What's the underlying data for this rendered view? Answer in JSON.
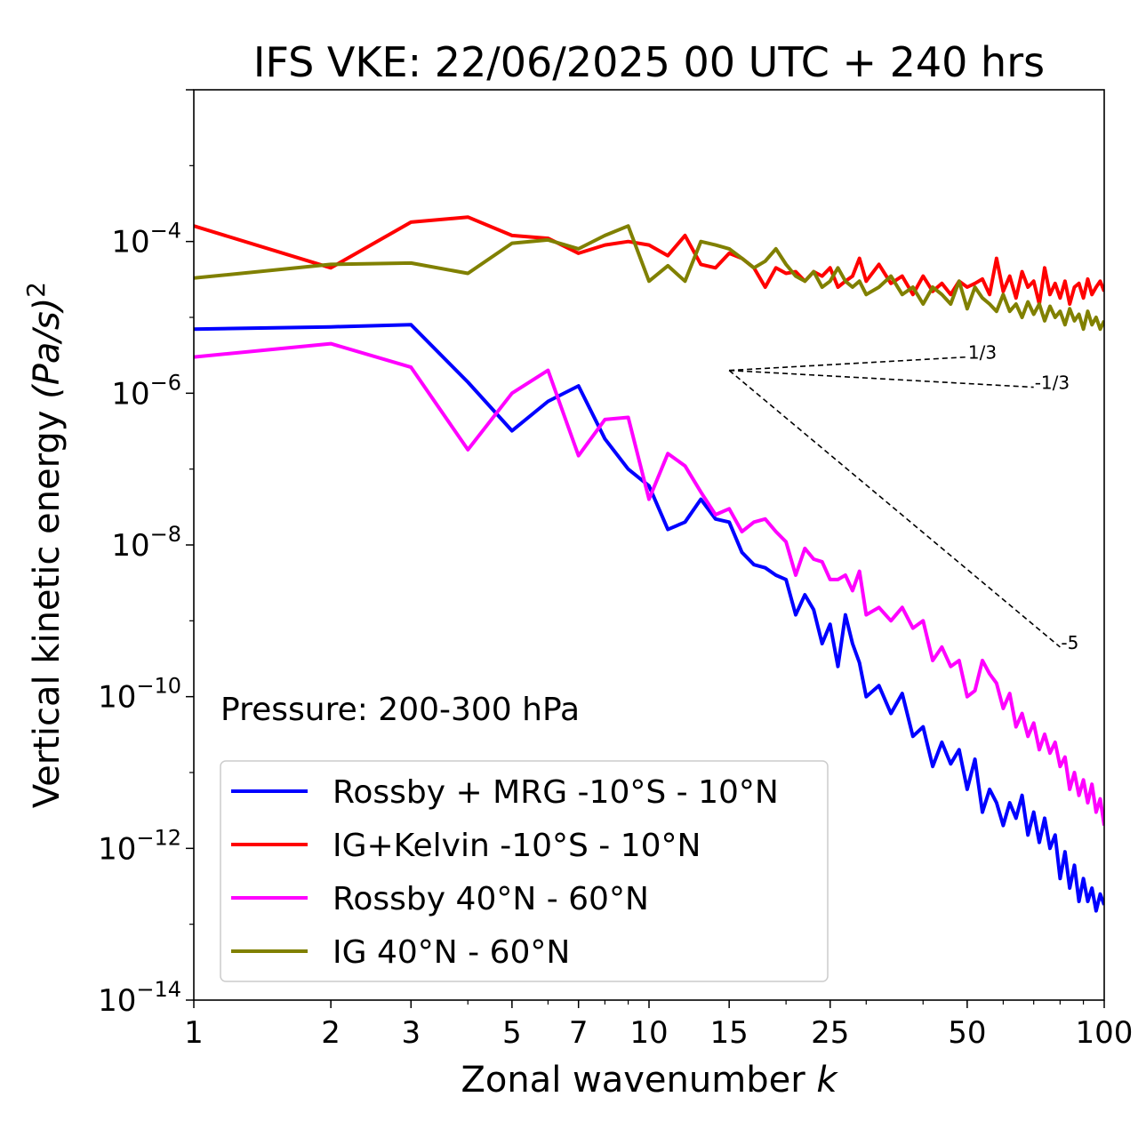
{
  "chart_data": {
    "type": "line",
    "title": "IFS VKE: 22/06/2025 00 UTC + 240 hrs",
    "xlabel": "Zonal wavenumber ",
    "xlabel_italic": "k",
    "ylabel": "Vertical kinetic energy ",
    "ylabel_unit": "(Pa/s)",
    "ylabel_exp": "2",
    "xscale": "log",
    "yscale": "log",
    "xlim": [
      1,
      100
    ],
    "ylim": [
      1e-14,
      0.01
    ],
    "x_ticks": [
      {
        "value": 1,
        "label": "1"
      },
      {
        "value": 2,
        "label": "2"
      },
      {
        "value": 3,
        "label": "3"
      },
      {
        "value": 5,
        "label": "5"
      },
      {
        "value": 7,
        "label": "7"
      },
      {
        "value": 10,
        "label": "10"
      },
      {
        "value": 15,
        "label": "15"
      },
      {
        "value": 25,
        "label": "25"
      },
      {
        "value": 50,
        "label": "50"
      },
      {
        "value": 100,
        "label": "100"
      }
    ],
    "y_ticks": [
      {
        "exp": -4,
        "base": "10",
        "sup": "−4"
      },
      {
        "exp": -6,
        "base": "10",
        "sup": "−6"
      },
      {
        "exp": -8,
        "base": "10",
        "sup": "−8"
      },
      {
        "exp": -10,
        "base": "10",
        "sup": "−10"
      },
      {
        "exp": -12,
        "base": "10",
        "sup": "−12"
      },
      {
        "exp": -14,
        "base": "10",
        "sup": "−14"
      }
    ],
    "annotation": "Pressure: 200-300 hPa",
    "legend_position": "lower-left",
    "reference_lines": [
      {
        "label": "1/3",
        "x": [
          15,
          50
        ],
        "y": [
          2e-06,
          3e-06
        ]
      },
      {
        "label": "-1/3",
        "x": [
          15,
          70
        ],
        "y": [
          2e-06,
          1.2e-06
        ]
      },
      {
        "label": "-5",
        "x": [
          15,
          80
        ],
        "y": [
          2e-06,
          4.5e-10
        ]
      }
    ],
    "series": [
      {
        "name": "Rossby + MRG -10°S - 10°N",
        "color": "#0000ff",
        "x": [
          1,
          2,
          3,
          4,
          5,
          6,
          7,
          8,
          9,
          10,
          11,
          12,
          13,
          14,
          15,
          16,
          17,
          18,
          19,
          20,
          21,
          22,
          23,
          24,
          25,
          26,
          27,
          28,
          29,
          30,
          32,
          34,
          36,
          38,
          40,
          42,
          44,
          46,
          48,
          50,
          52,
          54,
          56,
          58,
          60,
          62,
          64,
          66,
          68,
          70,
          72,
          74,
          76,
          78,
          80,
          82,
          84,
          86,
          88,
          90,
          92,
          94,
          96,
          98,
          100
        ],
        "y": [
          7e-06,
          7.5e-06,
          8e-06,
          1.4e-06,
          3.2e-07,
          7.8e-07,
          1.25e-06,
          2.5e-07,
          1e-07,
          6e-08,
          1.6e-08,
          2e-08,
          4e-08,
          2.2e-08,
          2e-08,
          8e-09,
          5.5e-09,
          5e-09,
          4e-09,
          3.5e-09,
          1.2e-09,
          2.2e-09,
          1.4e-09,
          5e-10,
          9e-10,
          2.5e-10,
          1.2e-09,
          5e-10,
          2.8e-10,
          1e-10,
          1.4e-10,
          6e-11,
          1.1e-10,
          3e-11,
          4e-11,
          1.2e-11,
          2.5e-11,
          1.3e-11,
          2e-11,
          6e-12,
          1.5e-11,
          3e-12,
          6e-12,
          4e-12,
          2e-12,
          4e-12,
          2.5e-12,
          5e-12,
          1.5e-12,
          3e-12,
          1.2e-12,
          2.5e-12,
          1e-12,
          1.5e-12,
          4e-13,
          9e-13,
          3e-13,
          6e-13,
          2e-13,
          4e-13,
          2e-13,
          3e-13,
          1.5e-13,
          2.5e-13,
          1.8e-13
        ]
      },
      {
        "name": "IG+Kelvin -10°S - 10°N",
        "color": "#ff0000",
        "x": [
          1,
          2,
          3,
          4,
          5,
          6,
          7,
          8,
          9,
          10,
          11,
          12,
          13,
          14,
          15,
          16,
          17,
          18,
          19,
          20,
          21,
          22,
          23,
          24,
          25,
          26,
          27,
          28,
          29,
          30,
          32,
          34,
          36,
          38,
          40,
          42,
          44,
          46,
          48,
          50,
          52,
          54,
          56,
          58,
          60,
          62,
          64,
          66,
          68,
          70,
          72,
          74,
          76,
          78,
          80,
          82,
          84,
          86,
          88,
          90,
          92,
          94,
          96,
          98,
          100
        ],
        "y": [
          0.00016,
          4.5e-05,
          0.00018,
          0.00021,
          0.00012,
          0.00011,
          7e-05,
          9e-05,
          0.0001,
          9e-05,
          6.5e-05,
          0.00012,
          5e-05,
          4.5e-05,
          7e-05,
          6e-05,
          4.5e-05,
          2.5e-05,
          4.5e-05,
          3.8e-05,
          4e-05,
          3e-05,
          4e-05,
          3.5e-05,
          4.5e-05,
          2.5e-05,
          3e-05,
          3.5e-05,
          6e-05,
          3e-05,
          5e-05,
          2.8e-05,
          3.5e-05,
          2e-05,
          3.5e-05,
          2.2e-05,
          2.8e-05,
          2e-05,
          3e-05,
          2.5e-05,
          2.8e-05,
          3.2e-05,
          2e-05,
          6e-05,
          2.2e-05,
          3.5e-05,
          1.8e-05,
          4e-05,
          2.5e-05,
          3e-05,
          1.5e-05,
          4.5e-05,
          2e-05,
          2.8e-05,
          1.8e-05,
          3e-05,
          1.5e-05,
          2.5e-05,
          2.8e-05,
          1.8e-05,
          3.2e-05,
          2e-05,
          2.5e-05,
          3e-05,
          2.2e-05
        ]
      },
      {
        "name": "Rossby 40°N - 60°N",
        "color": "#ff00ff",
        "x": [
          1,
          2,
          3,
          4,
          5,
          6,
          7,
          8,
          9,
          10,
          11,
          12,
          13,
          14,
          15,
          16,
          17,
          18,
          19,
          20,
          21,
          22,
          23,
          24,
          25,
          26,
          27,
          28,
          29,
          30,
          32,
          34,
          36,
          38,
          40,
          42,
          44,
          46,
          48,
          50,
          52,
          54,
          56,
          58,
          60,
          62,
          64,
          66,
          68,
          70,
          72,
          74,
          76,
          78,
          80,
          82,
          84,
          86,
          88,
          90,
          92,
          94,
          96,
          98,
          100
        ],
        "y": [
          3e-06,
          4.5e-06,
          2.2e-06,
          1.8e-07,
          1e-06,
          2e-06,
          1.5e-07,
          4.5e-07,
          4.8e-07,
          4e-08,
          1.6e-07,
          1.1e-07,
          5e-08,
          2.5e-08,
          3e-08,
          1.5e-08,
          2e-08,
          2.2e-08,
          1.5e-08,
          1.1e-08,
          4e-09,
          9e-09,
          6.5e-09,
          6e-09,
          3.5e-09,
          3.5e-09,
          4e-09,
          2.5e-09,
          4.5e-09,
          1.2e-09,
          1.5e-09,
          1e-09,
          1.5e-09,
          8e-10,
          1e-09,
          3e-10,
          4.5e-10,
          2.5e-10,
          3e-10,
          1e-10,
          1.2e-10,
          3e-10,
          2e-10,
          1.5e-10,
          7e-11,
          1.1e-10,
          4e-11,
          6e-11,
          3e-11,
          4.5e-11,
          2e-11,
          3.2e-11,
          1.8e-11,
          2.5e-11,
          1.2e-11,
          1.6e-11,
          6e-12,
          1e-11,
          5e-12,
          8e-12,
          4e-12,
          7e-12,
          3e-12,
          4.5e-12,
          2e-12
        ]
      },
      {
        "name": "IG 40°N - 60°N",
        "color": "#808000",
        "x": [
          1,
          2,
          3,
          4,
          5,
          6,
          7,
          8,
          9,
          10,
          11,
          12,
          13,
          14,
          15,
          16,
          17,
          18,
          19,
          20,
          21,
          22,
          23,
          24,
          25,
          26,
          27,
          28,
          29,
          30,
          32,
          34,
          36,
          38,
          40,
          42,
          44,
          46,
          48,
          50,
          52,
          54,
          56,
          58,
          60,
          62,
          64,
          66,
          68,
          70,
          72,
          74,
          76,
          78,
          80,
          82,
          84,
          86,
          88,
          90,
          92,
          94,
          96,
          98,
          100
        ],
        "y": [
          3.3e-05,
          5e-05,
          5.2e-05,
          3.8e-05,
          9.5e-05,
          0.000105,
          8e-05,
          0.00012,
          0.00016,
          3e-05,
          4.8e-05,
          3e-05,
          0.0001,
          9e-05,
          8e-05,
          6e-05,
          4.5e-05,
          5.5e-05,
          8e-05,
          5e-05,
          3.5e-05,
          3e-05,
          4e-05,
          2.5e-05,
          3e-05,
          4.5e-05,
          3e-05,
          2.5e-05,
          3e-05,
          2e-05,
          2.5e-05,
          3.5e-05,
          2e-05,
          2.5e-05,
          1.5e-05,
          2.5e-05,
          2e-05,
          1.5e-05,
          3e-05,
          1.3e-05,
          2.5e-05,
          1.8e-05,
          1.5e-05,
          1.2e-05,
          2e-05,
          1.2e-05,
          1.5e-05,
          1e-05,
          1.6e-05,
          1.1e-05,
          1.5e-05,
          9e-06,
          1.4e-05,
          1e-05,
          1.2e-05,
          8e-06,
          1.3e-05,
          9e-06,
          1.1e-05,
          7e-06,
          1.2e-05,
          8e-06,
          1e-05,
          7e-06,
          9e-06
        ]
      }
    ]
  }
}
